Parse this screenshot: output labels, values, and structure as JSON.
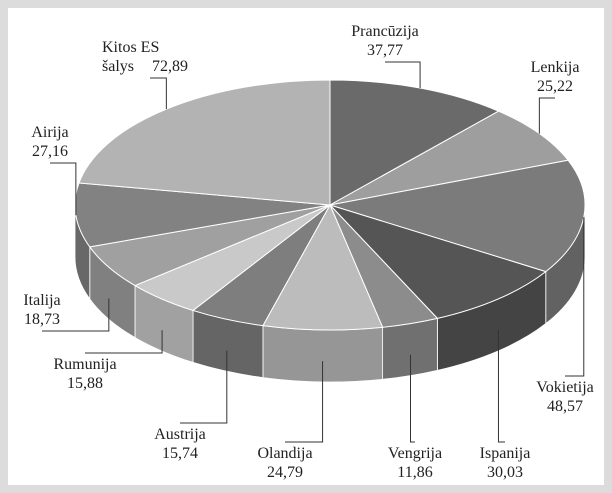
{
  "chart_data": {
    "type": "pie3d",
    "categories": [
      "Prancūzija",
      "Lenkija",
      "Vokietija",
      "Ispanija",
      "Vengrija",
      "Olandija",
      "Austrija",
      "Rumunija",
      "Italija",
      "Airija",
      "Kitos ES šalys"
    ],
    "values": [
      37.77,
      25.22,
      48.57,
      30.03,
      11.86,
      24.79,
      15.74,
      15.88,
      18.73,
      27.16,
      72.89
    ],
    "value_labels": [
      "37,77",
      "25,22",
      "48,57",
      "30,03",
      "11,86",
      "24,79",
      "15,74",
      "15,88",
      "18,73",
      "27,16",
      "72,89"
    ],
    "colors": [
      "#6a6a6a",
      "#9e9e9e",
      "#7b7b7b",
      "#555555",
      "#8c8c8c",
      "#bcbcbc",
      "#7e7e7e",
      "#c9c9c9",
      "#a0a0a0",
      "#828282",
      "#b3b3b3"
    ]
  }
}
